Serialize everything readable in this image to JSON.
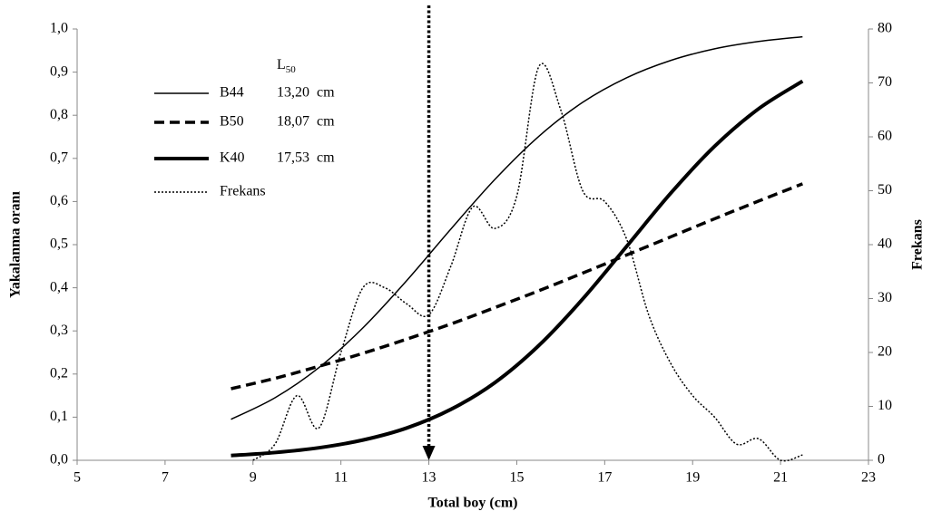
{
  "chart_data": {
    "type": "line",
    "x_label": "Total boy (cm)",
    "y_label": "Yakalanma oranı",
    "y2_label": "Frekans",
    "xlim": [
      5,
      23
    ],
    "xticks": [
      5,
      7,
      9,
      11,
      13,
      15,
      17,
      19,
      21,
      23
    ],
    "ylim": [
      0,
      1
    ],
    "yticks": [
      {
        "value": 0,
        "label": "0,0"
      },
      {
        "value": 0.1,
        "label": "0,1"
      },
      {
        "value": 0.2,
        "label": "0,2"
      },
      {
        "value": 0.3,
        "label": "0,3"
      },
      {
        "value": 0.4,
        "label": "0,4"
      },
      {
        "value": 0.5,
        "label": "0,5"
      },
      {
        "value": 0.6,
        "label": "0,6"
      },
      {
        "value": 0.7,
        "label": "0,7"
      },
      {
        "value": 0.8,
        "label": "0,8"
      },
      {
        "value": 0.9,
        "label": "0,9"
      },
      {
        "value": 1,
        "label": "1,0"
      }
    ],
    "y2lim": [
      0,
      80
    ],
    "y2ticks": [
      0,
      10,
      20,
      30,
      40,
      50,
      60,
      70,
      80
    ],
    "legend_title": "L",
    "legend_title_sub": "50",
    "marker_x": 13,
    "series": [
      {
        "name": "B44",
        "l50": {
          "value": 13.2,
          "label": "13,20  cm"
        },
        "color": "#000000",
        "line_width": 1.5,
        "dash": "none",
        "x": [
          8.5,
          9.5,
          10.5,
          11.5,
          12.5,
          13.5,
          14.5,
          15.5,
          16.5,
          17.5,
          18.5,
          19.5,
          20.5,
          21.5
        ],
        "values": [
          0.095,
          0.145,
          0.215,
          0.307,
          0.417,
          0.536,
          0.651,
          0.751,
          0.83,
          0.887,
          0.927,
          0.954,
          0.971,
          0.982
        ]
      },
      {
        "name": "B50",
        "l50": {
          "value": 18.07,
          "label": "18,07  cm"
        },
        "color": "#000000",
        "line_width": 3.5,
        "dash": "11,6",
        "x": [
          8.5,
          9.5,
          10.5,
          11.5,
          12.5,
          13.5,
          14.5,
          15.5,
          16.5,
          17.5,
          18.5,
          19.5,
          20.5,
          21.5
        ],
        "values": [
          0.166,
          0.19,
          0.218,
          0.248,
          0.281,
          0.316,
          0.354,
          0.393,
          0.434,
          0.476,
          0.518,
          0.56,
          0.601,
          0.641
        ]
      },
      {
        "name": "K40",
        "l50": {
          "value": 17.53,
          "label": "17,53  cm"
        },
        "color": "#000000",
        "line_width": 4,
        "dash": "none",
        "x": [
          8.5,
          9.5,
          10.5,
          11.5,
          12.5,
          13.5,
          14.5,
          15.5,
          16.5,
          17.5,
          18.5,
          19.5,
          20.5,
          21.5
        ],
        "values": [
          0.011,
          0.018,
          0.029,
          0.047,
          0.075,
          0.118,
          0.18,
          0.266,
          0.374,
          0.496,
          0.619,
          0.728,
          0.815,
          0.879
        ]
      },
      {
        "name": "Frekans",
        "axis": "y2",
        "color": "#000000",
        "line_width": 1.5,
        "dash": "2,2",
        "x": [
          9,
          9.5,
          10,
          10.5,
          11,
          11.5,
          12,
          12.5,
          13,
          13.5,
          14,
          14.5,
          15,
          15.5,
          16,
          16.5,
          17,
          17.5,
          18,
          18.5,
          19,
          19.5,
          20,
          20.5,
          21,
          21.5
        ],
        "values": [
          0,
          3,
          12,
          6,
          20,
          32,
          32,
          29,
          27,
          36,
          47,
          43,
          49,
          73,
          65,
          50,
          48,
          41,
          27,
          18,
          12,
          8,
          3,
          4,
          0,
          1
        ]
      }
    ]
  }
}
